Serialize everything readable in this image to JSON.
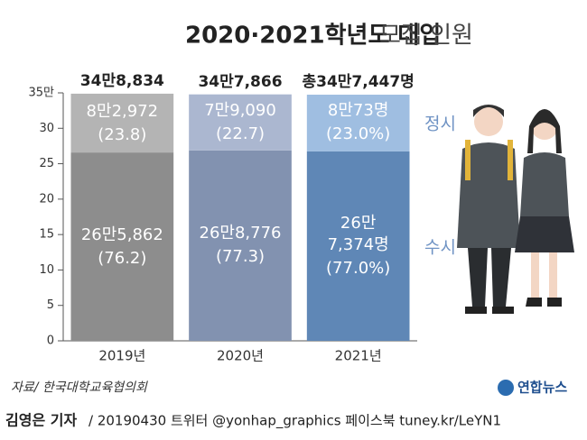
{
  "chart_data": {
    "type": "stacked_bar",
    "title": [
      "2020·2021학년도 대입",
      "모집 인원"
    ],
    "categories": [
      "2019년",
      "2020년",
      "2021년"
    ],
    "series": [
      {
        "name": "수시",
        "colors": [
          "#8d8d8d",
          "#8292b0",
          "#5f87b6"
        ],
        "values": [
          26.5862,
          26.8776,
          26.7374
        ],
        "value_labels": [
          "26만5,862",
          "26만8,776",
          "26만\n7,374명"
        ],
        "share_labels": [
          "(76.2)",
          "(77.3)",
          "(77.0%)"
        ]
      },
      {
        "name": "정시",
        "colors": [
          "#b4b4b4",
          "#abb7d0",
          "#9fbee1"
        ],
        "values": [
          8.2972,
          7.909,
          8.0073
        ],
        "value_labels": [
          "8만2,972",
          "7만9,090",
          "8만73명"
        ],
        "share_labels": [
          "(23.8)",
          "(22.7)",
          "(23.0%)"
        ]
      }
    ],
    "totals": [
      34.8834,
      34.7866,
      34.7447
    ],
    "total_labels": [
      "34만8,834",
      "34만7,866",
      "총34만7,447명"
    ],
    "legend_color": "#6f93c4",
    "ylim": [
      0,
      35
    ],
    "yticks": [
      0,
      5,
      10,
      15,
      20,
      25,
      30,
      {
        "value": 35,
        "label": "35만"
      }
    ],
    "source": "자료/ 한국대학교육협의회",
    "logo": "연합뉴스",
    "credit": "김영은 기자",
    "footer": "/ 20190430  트위터 @yonhap_graphics  페이스북 tuney.kr/LeYN1"
  }
}
